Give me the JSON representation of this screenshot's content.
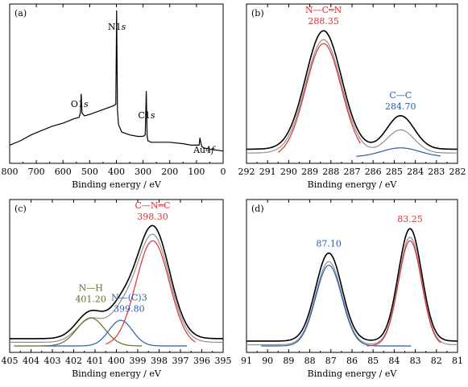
{
  "chart_data": [
    {
      "panel": "(a)",
      "type": "line",
      "xlabel": "Binding energy / eV",
      "xlim": [
        800,
        0
      ],
      "xticks": [
        800,
        700,
        600,
        500,
        400,
        300,
        200,
        100,
        0
      ],
      "annotations": [
        {
          "text": "N1",
          "italic": "s",
          "x": 398
        },
        {
          "text": "O1",
          "italic": "s",
          "x": 532
        },
        {
          "text": "C1",
          "italic": "s",
          "x": 287
        },
        {
          "text": "Au4",
          "italic": "f",
          "x": 84
        }
      ],
      "series": [
        {
          "color": "#000000",
          "x": [
            800,
            760,
            720,
            680,
            640,
            600,
            560,
            540,
            535,
            532,
            529,
            520,
            500,
            470,
            440,
            410,
            402,
            399,
            396,
            392,
            380,
            350,
            320,
            300,
            292,
            288,
            285,
            282,
            270,
            240,
            200,
            150,
            120,
            110,
            100,
            90,
            87,
            84,
            80,
            70,
            40,
            0
          ],
          "y": [
            0.08,
            0.11,
            0.15,
            0.18,
            0.21,
            0.23,
            0.26,
            0.27,
            0.3,
            0.43,
            0.3,
            0.28,
            0.29,
            0.31,
            0.33,
            0.35,
            0.36,
            1.0,
            0.32,
            0.22,
            0.17,
            0.15,
            0.14,
            0.14,
            0.15,
            0.45,
            0.15,
            0.11,
            0.1,
            0.1,
            0.1,
            0.09,
            0.08,
            0.08,
            0.08,
            0.08,
            0.13,
            0.1,
            0.07,
            0.06,
            0.05,
            0.04
          ]
        }
      ]
    },
    {
      "panel": "(b)",
      "type": "line",
      "xlabel": "Binding energy / eV",
      "xlim": [
        292,
        282
      ],
      "xticks": [
        292,
        291,
        290,
        289,
        288,
        287,
        286,
        285,
        284,
        283,
        282
      ],
      "annotations": [
        {
          "text": "N—C═N",
          "value": "288.35",
          "color": "#e03030",
          "x": 288.35
        },
        {
          "text": "C—C",
          "value": "284.70",
          "color": "#2a5caa",
          "x": 284.7
        }
      ],
      "series": [
        {
          "name": "envelope",
          "color": "#000000",
          "baseline": 0.06,
          "peaks": [
            {
              "c": 288.35,
              "h": 0.92,
              "w": 0.85
            },
            {
              "c": 284.7,
              "h": 0.26,
              "w": 0.65
            }
          ],
          "x_range": [
            292,
            282
          ]
        },
        {
          "name": "background",
          "color": "#909090",
          "baseline": 0.03,
          "peaks": [
            {
              "c": 288.35,
              "h": 0.88,
              "w": 0.85
            },
            {
              "c": 284.7,
              "h": 0.18,
              "w": 0.65
            }
          ],
          "x_range": [
            292,
            282
          ]
        },
        {
          "name": "N—C═N fit",
          "color": "#e03030",
          "baseline": 0.0,
          "peaks": [
            {
              "c": 288.35,
              "h": 0.88,
              "w": 0.85
            }
          ],
          "x_range": [
            290.5,
            286.6
          ]
        },
        {
          "name": "C—C fit",
          "color": "#2a5caa",
          "baseline": 0.0,
          "peaks": [
            {
              "c": 284.7,
              "h": 0.07,
              "w": 0.9
            }
          ],
          "x_range": [
            286.8,
            282.8
          ]
        }
      ]
    },
    {
      "panel": "(c)",
      "type": "line",
      "xlabel": "Binding energy / eV",
      "xlim": [
        405,
        395
      ],
      "xticks": [
        405,
        404,
        403,
        402,
        401,
        400,
        399,
        398,
        397,
        396,
        395
      ],
      "annotations": [
        {
          "text": "C—N═C",
          "value": "398.30",
          "color": "#e03030",
          "x": 398.3
        },
        {
          "text": "N—(C)3",
          "value": "399.80",
          "color": "#2a5caa",
          "x": 399.8
        },
        {
          "text": "N—H",
          "value": "401.20",
          "color": "#6b6b2a",
          "x": 401.2
        }
      ],
      "series": [
        {
          "name": "envelope",
          "color": "#000000",
          "baseline": 0.06,
          "peaks": [
            {
              "c": 398.3,
              "h": 0.92,
              "w": 0.78
            },
            {
              "c": 399.8,
              "h": 0.2,
              "w": 0.55
            },
            {
              "c": 401.2,
              "h": 0.22,
              "w": 0.65
            }
          ],
          "x_range": [
            405,
            395
          ]
        },
        {
          "name": "background",
          "color": "#909090",
          "baseline": 0.03,
          "peaks": [
            {
              "c": 398.3,
              "h": 0.88,
              "w": 0.78
            },
            {
              "c": 399.8,
              "h": 0.18,
              "w": 0.55
            },
            {
              "c": 401.2,
              "h": 0.19,
              "w": 0.65
            }
          ],
          "x_range": [
            405,
            395
          ]
        },
        {
          "name": "C—N═C fit",
          "color": "#e03030",
          "baseline": 0.0,
          "peaks": [
            {
              "c": 398.3,
              "h": 0.86,
              "w": 0.78
            }
          ],
          "x_range": [
            400.5,
            396.3
          ]
        },
        {
          "name": "N—(C)3 fit",
          "color": "#2a5caa",
          "baseline": 0.0,
          "peaks": [
            {
              "c": 399.8,
              "h": 0.21,
              "w": 0.55
            }
          ],
          "x_range": [
            403.5,
            396.7
          ]
        },
        {
          "name": "N—H fit",
          "color": "#6b6b2a",
          "baseline": 0.0,
          "peaks": [
            {
              "c": 401.2,
              "h": 0.23,
              "w": 0.65
            }
          ],
          "x_range": [
            404.8,
            398.8
          ]
        }
      ]
    },
    {
      "panel": "(d)",
      "type": "line",
      "xlabel": "Binding energy / eV",
      "xlim": [
        91,
        81
      ],
      "xticks": [
        91,
        90,
        89,
        88,
        87,
        86,
        85,
        84,
        83,
        82,
        81
      ],
      "annotations": [
        {
          "text": "",
          "value": "87.10",
          "color": "#2a5caa",
          "x": 87.1
        },
        {
          "text": "",
          "value": "83.25",
          "color": "#e03030",
          "x": 83.25
        }
      ],
      "series": [
        {
          "name": "envelope",
          "color": "#000000",
          "baseline": 0.04,
          "peaks": [
            {
              "c": 87.1,
              "h": 0.72,
              "w": 0.62
            },
            {
              "c": 83.25,
              "h": 0.92,
              "w": 0.55
            }
          ],
          "x_range": [
            91,
            81
          ]
        },
        {
          "name": "background",
          "color": "#909090",
          "baseline": 0.01,
          "peaks": [
            {
              "c": 87.1,
              "h": 0.68,
              "w": 0.62
            },
            {
              "c": 83.25,
              "h": 0.88,
              "w": 0.55
            }
          ],
          "x_range": [
            91,
            81
          ]
        },
        {
          "name": "87.10 fit",
          "color": "#2a5caa",
          "baseline": 0.0,
          "peaks": [
            {
              "c": 87.1,
              "h": 0.66,
              "w": 0.62
            }
          ],
          "x_range": [
            90.3,
            83.2
          ]
        },
        {
          "name": "83.25 fit",
          "color": "#e03030",
          "baseline": 0.0,
          "peaks": [
            {
              "c": 83.25,
              "h": 0.86,
              "w": 0.55
            }
          ],
          "x_range": [
            85.3,
            81.8
          ]
        }
      ]
    }
  ]
}
